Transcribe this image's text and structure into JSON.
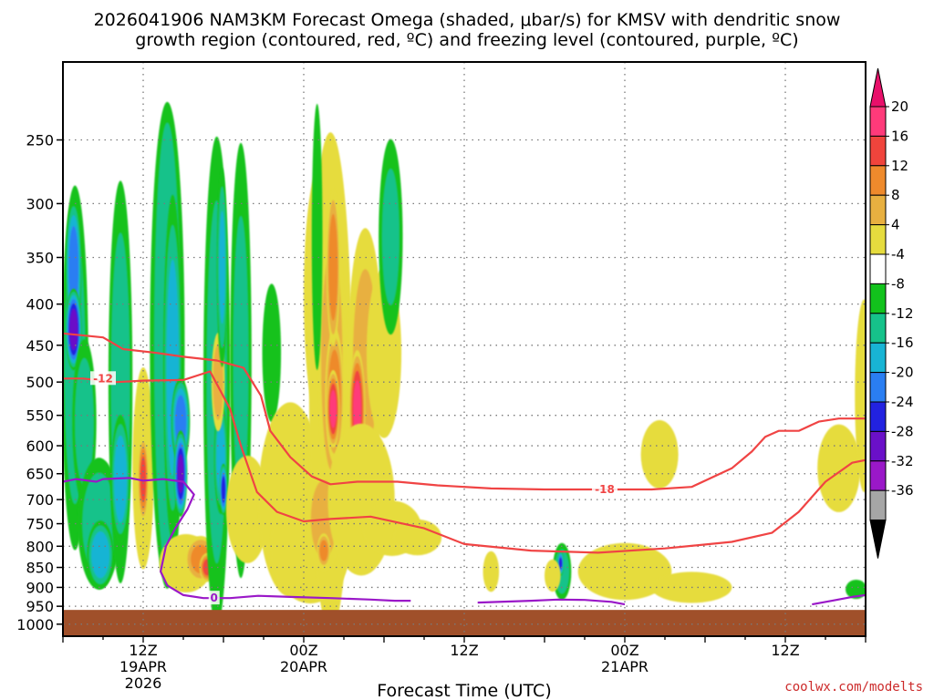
{
  "chart_data": {
    "type": "heatmap",
    "title_line1": "2026041906 NAM3KM Forecast Omega (shaded, μbar/s) for KMSV with dendritic snow",
    "title_line2": "growth region (contoured, red, ºC) and freezing level (contoured, purple, ºC)",
    "xlabel": "Forecast Time (UTC)",
    "credit": "coolwx.com/modelts",
    "x_range_hours": [
      0,
      60
    ],
    "x_ticks": [
      {
        "hour": 6,
        "label": "12Z",
        "sub1": "19APR",
        "sub2": "2026"
      },
      {
        "hour": 18,
        "label": "00Z",
        "sub1": "20APR",
        "sub2": ""
      },
      {
        "hour": 30,
        "label": "12Z",
        "sub1": "",
        "sub2": ""
      },
      {
        "hour": 42,
        "label": "00Z",
        "sub1": "21APR",
        "sub2": ""
      },
      {
        "hour": 54,
        "label": "12Z",
        "sub1": "",
        "sub2": ""
      }
    ],
    "y_range_mb": [
      200,
      1035
    ],
    "y_ticks": [
      250,
      300,
      350,
      400,
      450,
      500,
      550,
      600,
      650,
      700,
      750,
      800,
      850,
      900,
      950,
      1000
    ],
    "ground_top_mb": 960,
    "colorbar": {
      "labels": [
        "20",
        "16",
        "12",
        "8",
        "4",
        "-4",
        "-8",
        "-12",
        "-16",
        "-20",
        "-24",
        "-28",
        "-32",
        "-36"
      ],
      "bands": [
        {
          "lo": 20,
          "hi": 24,
          "color": "#ff3a7a"
        },
        {
          "lo": 16,
          "hi": 20,
          "color": "#f0443c"
        },
        {
          "lo": 12,
          "hi": 16,
          "color": "#ee8a2c"
        },
        {
          "lo": 8,
          "hi": 12,
          "color": "#e8b040"
        },
        {
          "lo": 4,
          "hi": 8,
          "color": "#e6dc3e"
        },
        {
          "lo": -4,
          "hi": 4,
          "color": "#ffffff"
        },
        {
          "lo": -8,
          "hi": -4,
          "color": "#12c21c"
        },
        {
          "lo": -12,
          "hi": -8,
          "color": "#16c28a"
        },
        {
          "lo": -16,
          "hi": -12,
          "color": "#18b4d4"
        },
        {
          "lo": -20,
          "hi": -16,
          "color": "#2a7ef2"
        },
        {
          "lo": -24,
          "hi": -20,
          "color": "#2222e0"
        },
        {
          "lo": -28,
          "hi": -24,
          "color": "#6a10c8"
        },
        {
          "lo": -32,
          "hi": -28,
          "color": "#9a18c8"
        },
        {
          "lo": -36,
          "hi": -32,
          "color": "#a6a6a6"
        }
      ],
      "top_triangle_color": "#e8106a",
      "bottom_triangle_color": "#000000"
    },
    "colors": {
      "ground": "#a0502a",
      "dgz": "#f04444",
      "freezing": "#9a18c8",
      "grid": "#7a7a7a"
    },
    "omega_blobs": [
      {
        "t": 0.9,
        "p": 480,
        "rt": 1.0,
        "rp": 230,
        "v": -10
      },
      {
        "t": 0.8,
        "p": 360,
        "rt": 0.6,
        "rp": 70,
        "v": -19
      },
      {
        "t": 0.8,
        "p": 430,
        "rt": 0.6,
        "rp": 50,
        "v": -27
      },
      {
        "t": 1.6,
        "p": 560,
        "rt": 0.9,
        "rp": 130,
        "v": -10
      },
      {
        "t": 2.7,
        "p": 750,
        "rt": 1.6,
        "rp": 140,
        "v": -10
      },
      {
        "t": 2.8,
        "p": 820,
        "rt": 1.0,
        "rp": 80,
        "v": -15
      },
      {
        "t": 4.3,
        "p": 500,
        "rt": 0.9,
        "rp": 260,
        "v": -10
      },
      {
        "t": 4.3,
        "p": 660,
        "rt": 0.7,
        "rp": 120,
        "v": -15
      },
      {
        "t": 6.0,
        "p": 640,
        "rt": 0.8,
        "rp": 180,
        "v": 6
      },
      {
        "t": 6.0,
        "p": 660,
        "rt": 0.4,
        "rp": 80,
        "v": 17
      },
      {
        "t": 7.8,
        "p": 450,
        "rt": 1.3,
        "rp": 360,
        "v": -9
      },
      {
        "t": 8.2,
        "p": 480,
        "rt": 0.7,
        "rp": 220,
        "v": -14
      },
      {
        "t": 8.8,
        "p": 560,
        "rt": 0.7,
        "rp": 70,
        "v": -19
      },
      {
        "t": 8.8,
        "p": 650,
        "rt": 0.5,
        "rp": 80,
        "v": -25
      },
      {
        "t": 9.2,
        "p": 840,
        "rt": 2.0,
        "rp": 70,
        "v": 7
      },
      {
        "t": 10.3,
        "p": 830,
        "rt": 1.2,
        "rp": 55,
        "v": 13
      },
      {
        "t": 10.8,
        "p": 850,
        "rt": 0.6,
        "rp": 35,
        "v": 18
      },
      {
        "t": 11.5,
        "p": 500,
        "rt": 1.0,
        "rp": 320,
        "v": -9
      },
      {
        "t": 11.8,
        "p": 620,
        "rt": 0.5,
        "rp": 100,
        "v": -14
      },
      {
        "t": 12.0,
        "p": 680,
        "rt": 0.3,
        "rp": 50,
        "v": -22
      },
      {
        "t": 11.6,
        "p": 500,
        "rt": 0.5,
        "rp": 70,
        "v": 10
      },
      {
        "t": 11.9,
        "p": 360,
        "rt": 0.4,
        "rp": 100,
        "v": -12
      },
      {
        "t": 13.3,
        "p": 470,
        "rt": 0.8,
        "rp": 260,
        "v": -8
      },
      {
        "t": 13.8,
        "p": 720,
        "rt": 1.6,
        "rp": 110,
        "v": 6
      },
      {
        "t": 15.6,
        "p": 460,
        "rt": 0.7,
        "rp": 90,
        "v": -6
      },
      {
        "t": 17.0,
        "p": 700,
        "rt": 2.4,
        "rp": 190,
        "v": 6
      },
      {
        "t": 18.5,
        "p": 800,
        "rt": 3.0,
        "rp": 130,
        "v": 6
      },
      {
        "t": 19.3,
        "p": 390,
        "rt": 1.3,
        "rp": 140,
        "v": 6
      },
      {
        "t": 20.0,
        "p": 500,
        "rt": 1.6,
        "rp": 340,
        "v": 7
      },
      {
        "t": 20.1,
        "p": 470,
        "rt": 1.0,
        "rp": 180,
        "v": 11
      },
      {
        "t": 20.3,
        "p": 520,
        "rt": 0.7,
        "rp": 100,
        "v": 15
      },
      {
        "t": 20.2,
        "p": 360,
        "rt": 0.5,
        "rp": 80,
        "v": 15
      },
      {
        "t": 20.2,
        "p": 540,
        "rt": 0.5,
        "rp": 60,
        "v": 21
      },
      {
        "t": 19.5,
        "p": 740,
        "rt": 1.3,
        "rp": 110,
        "v": 9
      },
      {
        "t": 19.5,
        "p": 810,
        "rt": 0.5,
        "rp": 40,
        "v": 13
      },
      {
        "t": 19.0,
        "p": 330,
        "rt": 0.4,
        "rp": 120,
        "v": -6
      },
      {
        "t": 22.6,
        "p": 470,
        "rt": 1.3,
        "rp": 170,
        "v": 8
      },
      {
        "t": 22.0,
        "p": 540,
        "rt": 0.6,
        "rp": 90,
        "v": 21
      },
      {
        "t": 22.3,
        "p": 700,
        "rt": 2.5,
        "rp": 150,
        "v": 6
      },
      {
        "t": 24.0,
        "p": 460,
        "rt": 1.3,
        "rp": 110,
        "v": 6
      },
      {
        "t": 24.5,
        "p": 330,
        "rt": 0.9,
        "rp": 90,
        "v": -8
      },
      {
        "t": 24.6,
        "p": 760,
        "rt": 2.2,
        "rp": 60,
        "v": 6
      },
      {
        "t": 26.5,
        "p": 780,
        "rt": 1.8,
        "rp": 40,
        "v": 5
      },
      {
        "t": 32.0,
        "p": 860,
        "rt": 0.6,
        "rp": 50,
        "v": 5
      },
      {
        "t": 37.3,
        "p": 860,
        "rt": 0.7,
        "rp": 70,
        "v": -10
      },
      {
        "t": 37.2,
        "p": 840,
        "rt": 0.25,
        "rp": 30,
        "v": -20
      },
      {
        "t": 36.6,
        "p": 870,
        "rt": 0.6,
        "rp": 40,
        "v": 5
      },
      {
        "t": 42.0,
        "p": 860,
        "rt": 3.5,
        "rp": 70,
        "v": 5
      },
      {
        "t": 47.0,
        "p": 900,
        "rt": 3.0,
        "rp": 40,
        "v": 5
      },
      {
        "t": 44.6,
        "p": 615,
        "rt": 1.4,
        "rp": 60,
        "v": 5
      },
      {
        "t": 58.0,
        "p": 640,
        "rt": 1.6,
        "rp": 80,
        "v": 5
      },
      {
        "t": 59.9,
        "p": 520,
        "rt": 0.7,
        "rp": 140,
        "v": 5
      },
      {
        "t": 59.3,
        "p": 905,
        "rt": 0.8,
        "rp": 25,
        "v": -7
      }
    ],
    "dgz_contours": [
      {
        "label": "-12",
        "points": [
          [
            0,
            495
          ],
          [
            1.5,
            495
          ],
          [
            4,
            500
          ],
          [
            6,
            498
          ],
          [
            9,
            497
          ],
          [
            11,
            485
          ],
          [
            12.5,
            540
          ],
          [
            13.3,
            600
          ],
          [
            14.5,
            685
          ],
          [
            16,
            725
          ],
          [
            18,
            745
          ],
          [
            20,
            740
          ],
          [
            23,
            735
          ],
          [
            27,
            760
          ],
          [
            30,
            795
          ],
          [
            35,
            810
          ],
          [
            40,
            815
          ],
          [
            45,
            805
          ],
          [
            50,
            790
          ],
          [
            53,
            770
          ],
          [
            55,
            725
          ],
          [
            57,
            665
          ],
          [
            59,
            630
          ],
          [
            60,
            625
          ]
        ],
        "label_at": [
          3.0,
          495
        ]
      },
      {
        "label": "-18",
        "points": [
          [
            0,
            435
          ],
          [
            3,
            440
          ],
          [
            4.5,
            455
          ],
          [
            7,
            460
          ],
          [
            9,
            465
          ],
          [
            11.5,
            470
          ],
          [
            13.5,
            480
          ],
          [
            14.8,
            520
          ],
          [
            15.5,
            575
          ],
          [
            17,
            620
          ],
          [
            18.6,
            655
          ],
          [
            20,
            670
          ],
          [
            22,
            665
          ],
          [
            25,
            665
          ],
          [
            28,
            672
          ],
          [
            32,
            678
          ],
          [
            36,
            680
          ],
          [
            41,
            680
          ],
          [
            44,
            680
          ],
          [
            47,
            675
          ],
          [
            50,
            640
          ],
          [
            51.5,
            610
          ],
          [
            52.5,
            585
          ],
          [
            53.5,
            575
          ],
          [
            55,
            575
          ],
          [
            56.5,
            560
          ],
          [
            58,
            555
          ],
          [
            60,
            555
          ]
        ],
        "label_at": [
          40.5,
          680
        ]
      }
    ],
    "freezing_contour": {
      "label": "0",
      "points": [
        [
          0,
          665
        ],
        [
          1,
          660
        ],
        [
          2.5,
          665
        ],
        [
          3,
          660
        ],
        [
          5,
          658
        ],
        [
          6,
          663
        ],
        [
          7.5,
          660
        ],
        [
          9,
          665
        ],
        [
          9.8,
          690
        ],
        [
          9.3,
          720
        ],
        [
          8.4,
          760
        ],
        [
          7.7,
          800
        ],
        [
          7.3,
          860
        ],
        [
          7.8,
          895
        ],
        [
          9.0,
          920
        ],
        [
          10.5,
          928
        ],
        [
          12.5,
          928
        ],
        [
          14.6,
          922
        ],
        [
          17,
          925
        ],
        [
          20,
          928
        ],
        [
          23,
          932
        ],
        [
          24.8,
          935
        ],
        [
          26,
          935
        ]
      ],
      "label_at": [
        11.3,
        928
      ],
      "segments_extra": [
        [
          [
            31,
            940
          ],
          [
            35,
            935
          ],
          [
            37,
            932
          ],
          [
            39,
            933
          ],
          [
            41,
            938
          ],
          [
            42,
            945
          ]
        ],
        [
          [
            56,
            945
          ],
          [
            57.5,
            935
          ],
          [
            59,
            925
          ],
          [
            60,
            920
          ]
        ]
      ]
    }
  }
}
